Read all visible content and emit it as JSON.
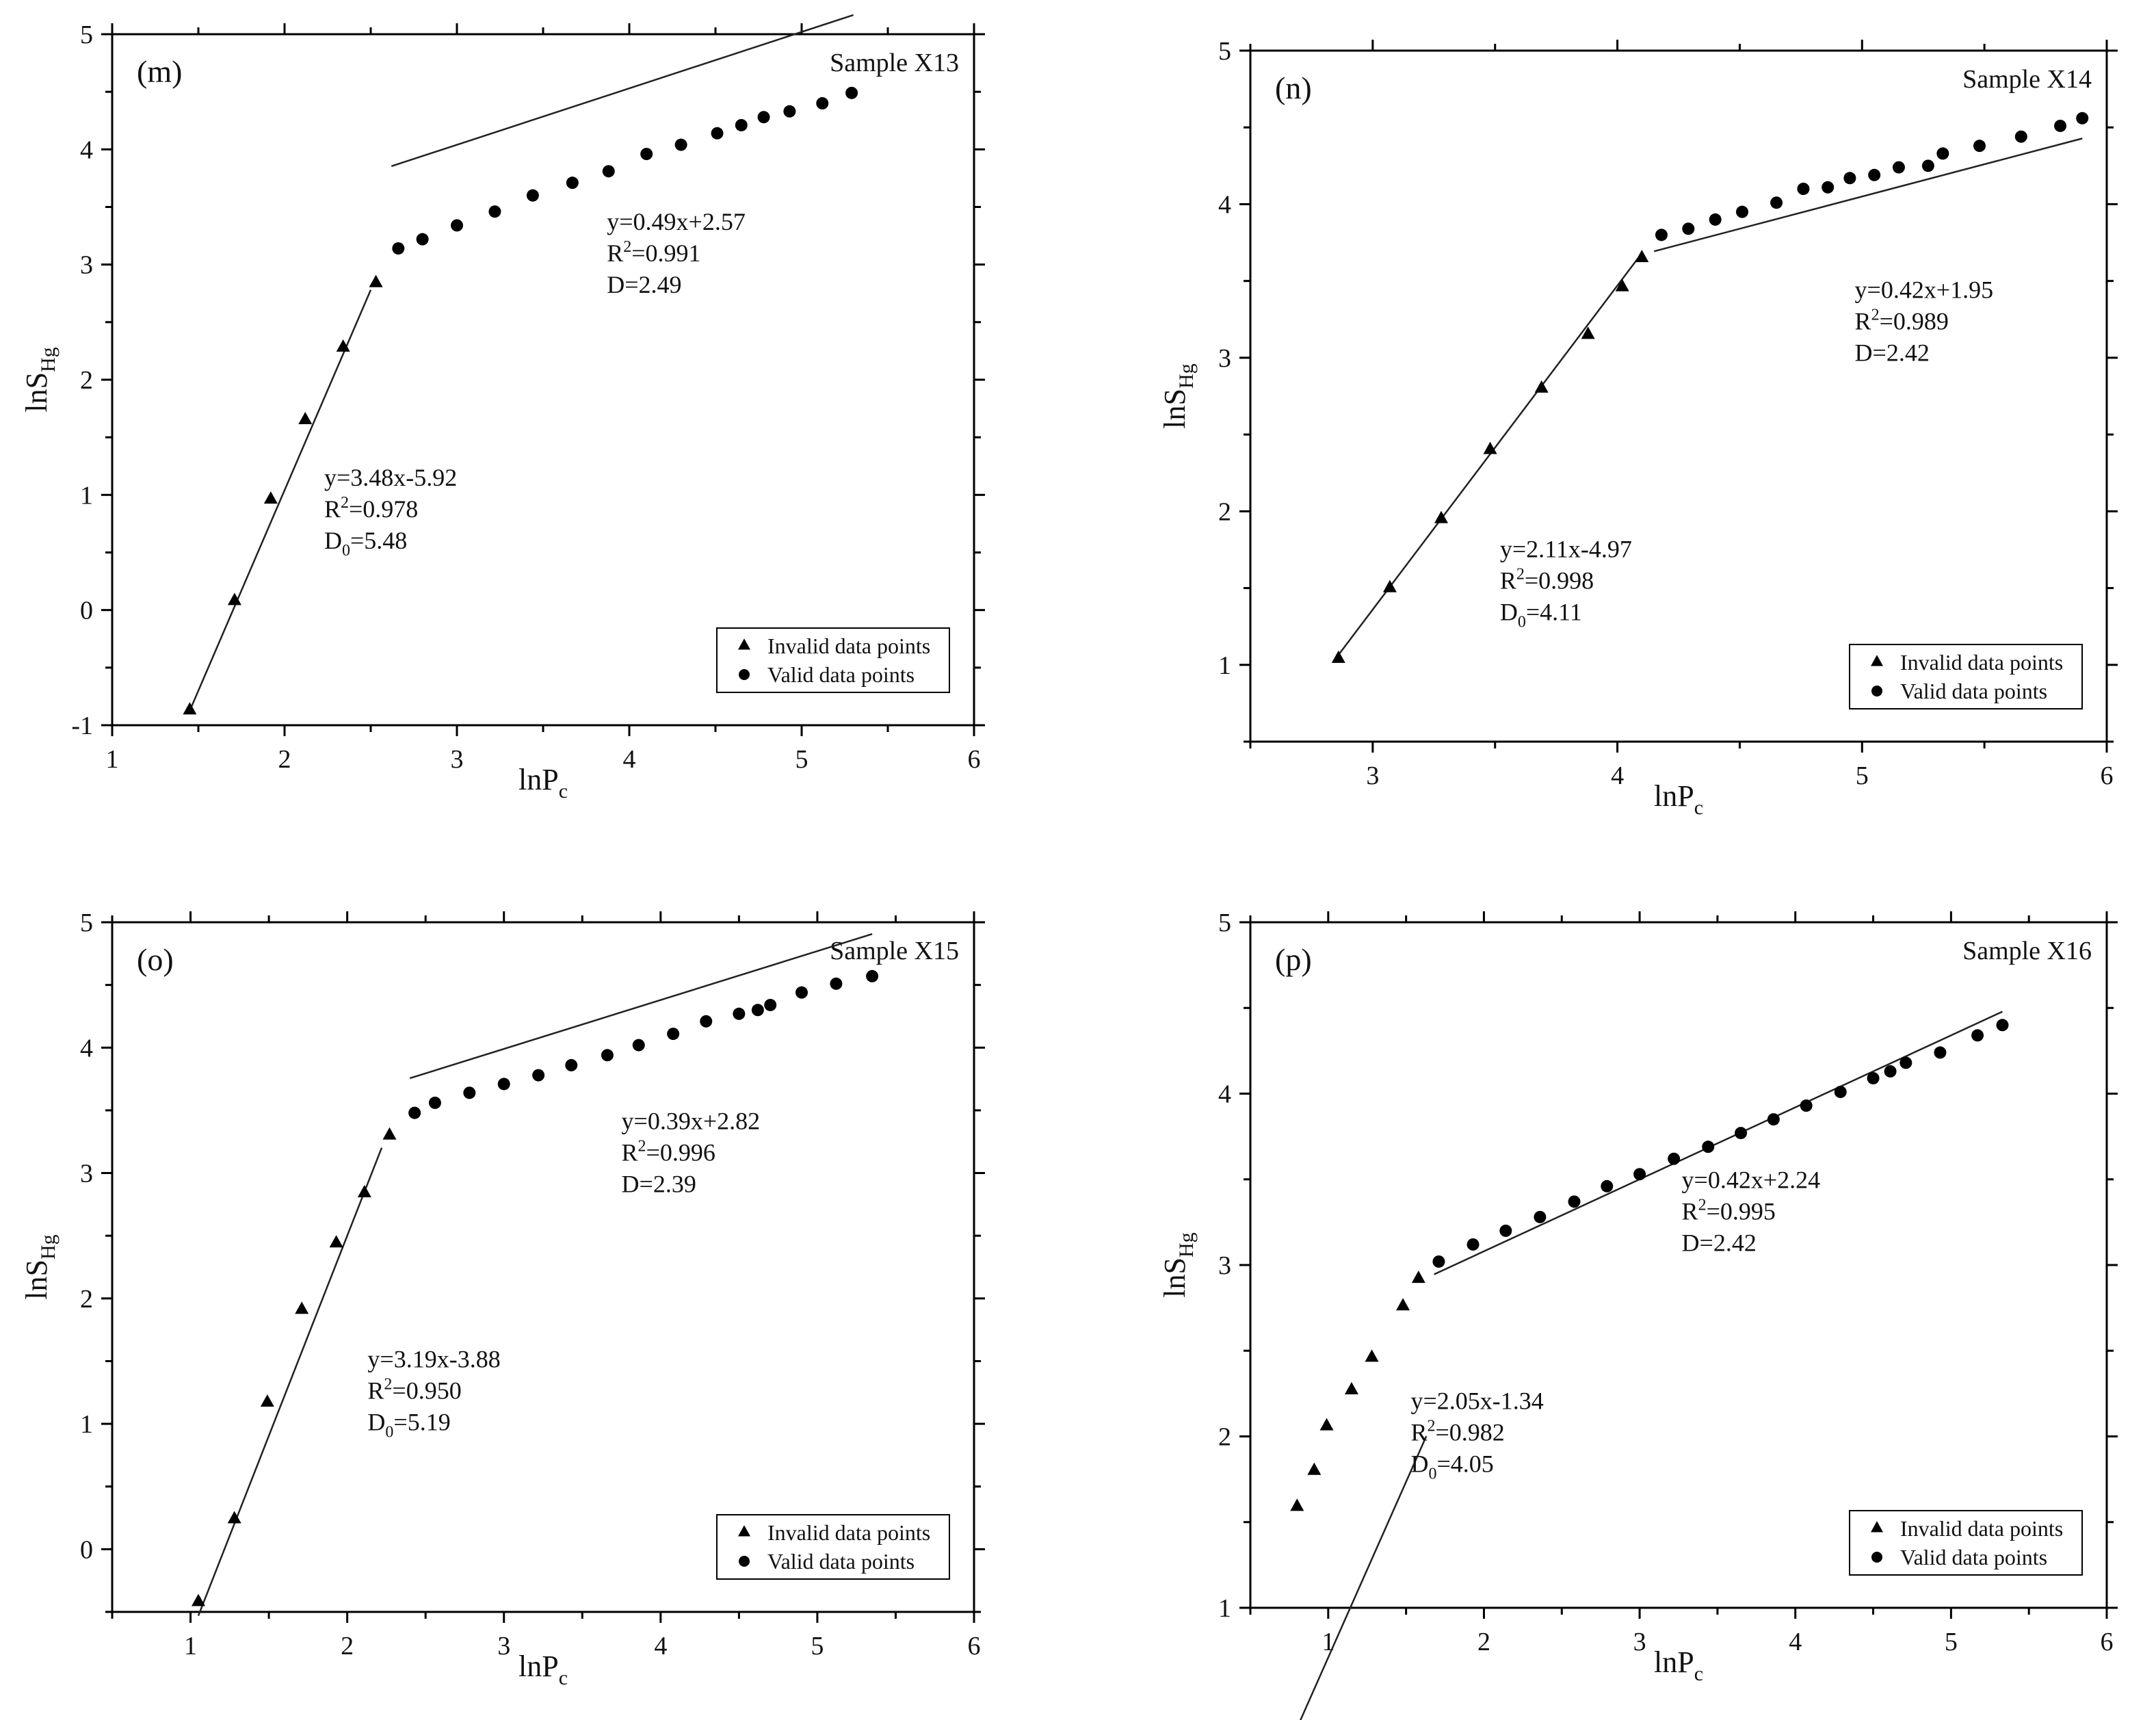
{
  "colors": {
    "marker": "#000000",
    "line": "#222222",
    "axis": "#000000",
    "background": "#ffffff"
  },
  "chart_data": [
    {
      "type": "scatter",
      "panel": "(m)",
      "sample": "Sample X13",
      "xlabel": {
        "main": "lnP",
        "sub": "c"
      },
      "ylabel": {
        "main": "lnS",
        "sub": "Hg"
      },
      "xlim": [
        1,
        6
      ],
      "ylim": [
        -1,
        5
      ],
      "xticks": [
        "1",
        "2",
        "3",
        "4",
        "5",
        "6"
      ],
      "yticks": [
        "-1",
        "0",
        "1",
        "2",
        "3",
        "4",
        "5"
      ],
      "grid": false,
      "legend_position": "bottom-right",
      "series": [
        {
          "name": "Invalid data points",
          "marker": "triangle",
          "x": [
            1.45,
            1.71,
            1.92,
            2.12,
            2.34,
            2.53
          ],
          "y": [
            -0.87,
            0.08,
            0.96,
            1.65,
            2.28,
            2.84
          ]
        },
        {
          "name": "Valid data points",
          "marker": "circle",
          "x": [
            2.66,
            2.8,
            3.0,
            3.22,
            3.44,
            3.67,
            3.88,
            4.1,
            4.3,
            4.51,
            4.65,
            4.78,
            4.93,
            5.12,
            5.29
          ],
          "y": [
            3.14,
            3.22,
            3.34,
            3.46,
            3.6,
            3.71,
            3.81,
            3.96,
            4.04,
            4.14,
            4.21,
            4.28,
            4.33,
            4.4,
            4.49
          ]
        }
      ],
      "fits": [
        {
          "x_range": [
            1.45,
            2.5
          ],
          "slope": 3.48,
          "intercept": -5.92,
          "equation": "y=3.48x-5.92",
          "r2_prefix": "R",
          "r2_value": "=0.978",
          "d_prefix": "D",
          "d_sub": "0",
          "d_value": "=5.48",
          "label_at": [
            2.23,
            1.08
          ]
        },
        {
          "x_range": [
            2.62,
            5.3
          ],
          "slope": 0.49,
          "intercept": 2.57,
          "equation": "y=0.49x+2.57",
          "r2_prefix": "R",
          "r2_value": "=0.991",
          "d_prefix": "D",
          "d_sub": "",
          "d_value": "=2.49",
          "label_at": [
            3.87,
            3.3
          ]
        }
      ]
    },
    {
      "type": "scatter",
      "panel": "(n)",
      "sample": "Sample X14",
      "xlabel": {
        "main": "lnP",
        "sub": "c"
      },
      "ylabel": {
        "main": "lnS",
        "sub": "Hg"
      },
      "xlim": [
        2.5,
        6
      ],
      "ylim": [
        0.5,
        5
      ],
      "xticks": [
        "3",
        "4",
        "5",
        "6"
      ],
      "yticks": [
        "1",
        "2",
        "3",
        "4",
        "5"
      ],
      "grid": false,
      "legend_position": "bottom-right",
      "series": [
        {
          "name": "Invalid data points",
          "marker": "triangle",
          "x": [
            2.86,
            3.07,
            3.28,
            3.48,
            3.69,
            3.88,
            4.02,
            4.1
          ],
          "y": [
            1.04,
            1.5,
            1.95,
            2.4,
            2.8,
            3.15,
            3.46,
            3.65
          ]
        },
        {
          "name": "Valid data points",
          "marker": "circle",
          "x": [
            4.18,
            4.29,
            4.4,
            4.51,
            4.65,
            4.76,
            4.86,
            4.95,
            5.05,
            5.15,
            5.27,
            5.33,
            5.48,
            5.65,
            5.81,
            5.9
          ],
          "y": [
            3.8,
            3.84,
            3.9,
            3.95,
            4.01,
            4.1,
            4.11,
            4.17,
            4.19,
            4.24,
            4.25,
            4.33,
            4.38,
            4.44,
            4.51,
            4.56
          ]
        }
      ],
      "fits": [
        {
          "x_range": [
            2.86,
            4.1
          ],
          "slope": 2.11,
          "intercept": -4.97,
          "equation": "y=2.11x-4.97",
          "r2_prefix": "R",
          "r2_value": "=0.998",
          "d_prefix": "D",
          "d_sub": "0",
          "d_value": "=4.11",
          "label_at": [
            3.52,
            1.7
          ]
        },
        {
          "x_range": [
            4.15,
            5.9
          ],
          "slope": 0.42,
          "intercept": 1.95,
          "equation": "y=0.42x+1.95",
          "r2_prefix": "R",
          "r2_value": "=0.989",
          "d_prefix": "D",
          "d_sub": "",
          "d_value": "=2.42",
          "label_at": [
            4.97,
            3.39
          ]
        }
      ]
    },
    {
      "type": "scatter",
      "panel": "(o)",
      "sample": "Sample X15",
      "xlabel": {
        "main": "lnP",
        "sub": "c"
      },
      "ylabel": {
        "main": "lnS",
        "sub": "Hg"
      },
      "xlim": [
        0.5,
        6
      ],
      "ylim": [
        -0.5,
        5
      ],
      "xticks": [
        "1",
        "2",
        "3",
        "4",
        "5",
        "6"
      ],
      "yticks": [
        "0",
        "1",
        "2",
        "3",
        "4",
        "5"
      ],
      "grid": false,
      "legend_position": "bottom-right",
      "series": [
        {
          "name": "Invalid data points",
          "marker": "triangle",
          "x": [
            1.05,
            1.28,
            1.49,
            1.71,
            1.93,
            2.11,
            2.27
          ],
          "y": [
            -0.42,
            0.24,
            1.17,
            1.91,
            2.44,
            2.84,
            3.3
          ]
        },
        {
          "name": "Valid data points",
          "marker": "circle",
          "x": [
            2.43,
            2.56,
            2.78,
            3.0,
            3.22,
            3.43,
            3.66,
            3.86,
            4.08,
            4.29,
            4.5,
            4.62,
            4.7,
            4.9,
            5.12,
            5.35
          ],
          "y": [
            3.48,
            3.56,
            3.64,
            3.71,
            3.78,
            3.86,
            3.94,
            4.02,
            4.11,
            4.21,
            4.27,
            4.3,
            4.34,
            4.44,
            4.51,
            4.57
          ]
        }
      ],
      "fits": [
        {
          "x_range": [
            1.05,
            2.22
          ],
          "slope": 3.19,
          "intercept": -3.88,
          "equation": "y=3.19x-3.88",
          "r2_prefix": "R",
          "r2_value": "=0.950",
          "d_prefix": "D",
          "d_sub": "0",
          "d_value": "=5.19",
          "label_at": [
            2.13,
            1.45
          ]
        },
        {
          "x_range": [
            2.4,
            5.35
          ],
          "slope": 0.39,
          "intercept": 2.82,
          "equation": "y=0.39x+2.82",
          "r2_prefix": "R",
          "r2_value": "=0.996",
          "d_prefix": "D",
          "d_sub": "",
          "d_value": "=2.39",
          "label_at": [
            3.75,
            3.35
          ]
        }
      ]
    },
    {
      "type": "scatter",
      "panel": "(p)",
      "sample": "Sample X16",
      "xlabel": {
        "main": "lnP",
        "sub": "c"
      },
      "ylabel": {
        "main": "lnS",
        "sub": "Hg"
      },
      "xlim": [
        0.5,
        6
      ],
      "ylim": [
        1,
        5
      ],
      "xticks": [
        "1",
        "2",
        "3",
        "4",
        "5",
        "6"
      ],
      "yticks": [
        "1",
        "2",
        "3",
        "4",
        "5"
      ],
      "grid": false,
      "legend_position": "bottom-right",
      "series": [
        {
          "name": "Invalid data points",
          "marker": "triangle",
          "x": [
            0.8,
            0.91,
            0.99,
            1.15,
            1.28,
            1.48,
            1.58
          ],
          "y": [
            1.59,
            1.8,
            2.06,
            2.27,
            2.46,
            2.76,
            2.92
          ]
        },
        {
          "name": "Valid data points",
          "marker": "circle",
          "x": [
            1.71,
            1.93,
            2.14,
            2.36,
            2.58,
            2.79,
            3.0,
            3.22,
            3.44,
            3.65,
            3.86,
            4.07,
            4.29,
            4.5,
            4.61,
            4.71,
            4.93,
            5.17,
            5.33
          ],
          "y": [
            3.02,
            3.12,
            3.2,
            3.28,
            3.37,
            3.46,
            3.53,
            3.62,
            3.69,
            3.77,
            3.85,
            3.93,
            4.01,
            4.09,
            4.13,
            4.18,
            4.24,
            4.34,
            4.4
          ]
        }
      ],
      "fits": [
        {
          "x_range": [
            0.8,
            1.63
          ],
          "slope": 2.05,
          "intercept": -1.34,
          "equation": "y=2.05x-1.34",
          "r2_prefix": "R",
          "r2_value": "=0.982",
          "d_prefix": "D",
          "d_sub": "0",
          "d_value": "=4.05",
          "label_at": [
            1.53,
            2.16
          ]
        },
        {
          "x_range": [
            1.68,
            5.33
          ],
          "slope": 0.42,
          "intercept": 2.24,
          "equation": "y=0.42x+2.24",
          "r2_prefix": "R",
          "r2_value": "=0.995",
          "d_prefix": "D",
          "d_sub": "",
          "d_value": "=2.42",
          "label_at": [
            3.27,
            3.45
          ]
        }
      ]
    }
  ]
}
